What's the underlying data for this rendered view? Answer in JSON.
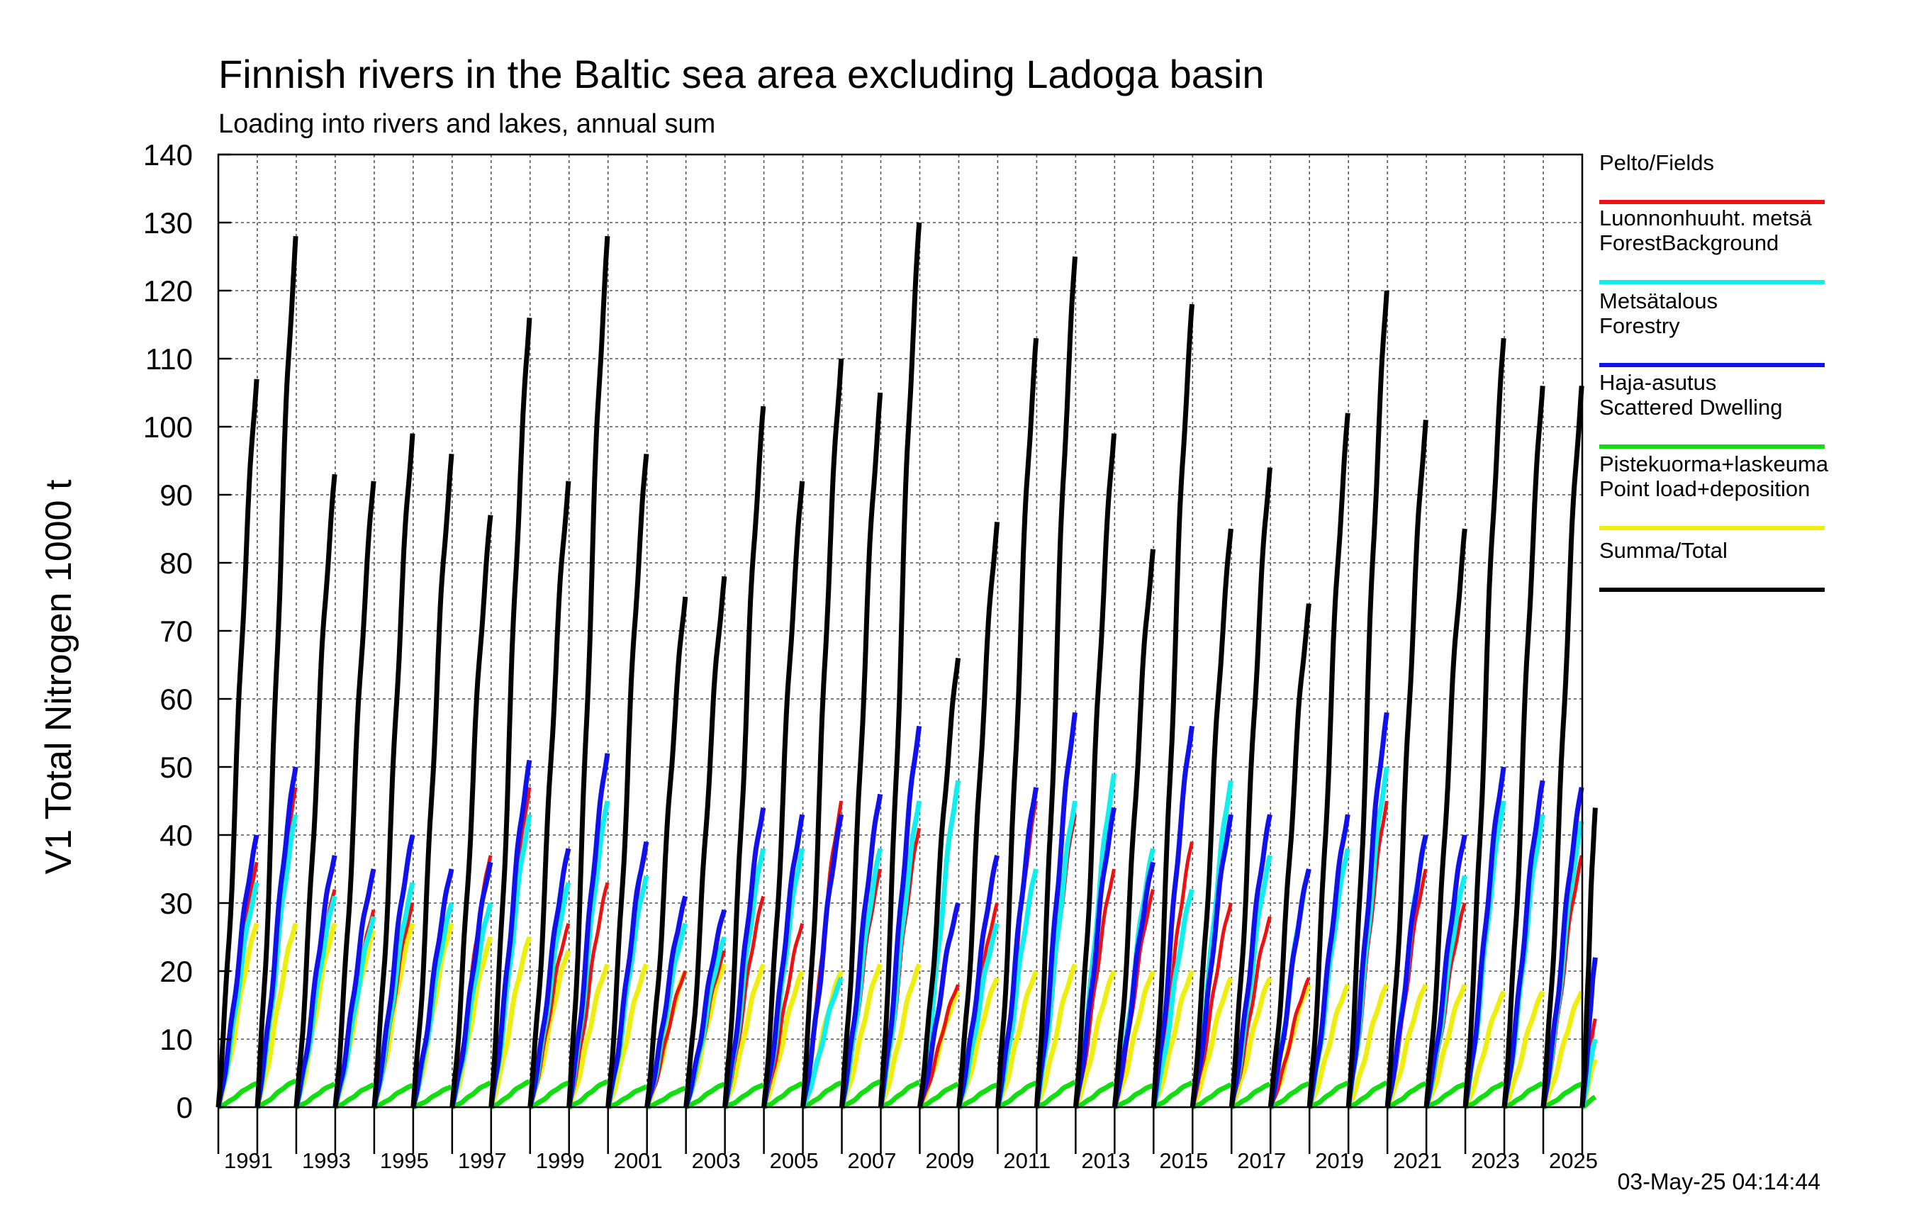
{
  "chart_data": {
    "type": "line",
    "title": "Finnish rivers in the Baltic sea area excluding Ladoga basin",
    "subtitle": "Loading into rivers and lakes, annual sum",
    "ylabel": "V1 Total Nitrogen 1000 t",
    "xlabel": "",
    "ylim": [
      0,
      140
    ],
    "xlim": [
      1990,
      2025
    ],
    "yticks": [
      "0",
      "10",
      "20",
      "30",
      "40",
      "50",
      "60",
      "70",
      "80",
      "90",
      "100",
      "110",
      "120",
      "130",
      "140"
    ],
    "xtick_labels": [
      "1991",
      "1993",
      "1995",
      "1997",
      "1999",
      "2001",
      "2003",
      "2005",
      "2007",
      "2009",
      "2011",
      "2013",
      "2015",
      "2017",
      "2019",
      "2021",
      "2023",
      "2025"
    ],
    "grid": true,
    "legend_position": "right",
    "timestamp": "03-May-25 04:14:44",
    "years": [
      1990,
      1991,
      1992,
      1993,
      1994,
      1995,
      1996,
      1997,
      1998,
      1999,
      2000,
      2001,
      2002,
      2003,
      2004,
      2005,
      2006,
      2007,
      2008,
      2009,
      2010,
      2011,
      2012,
      2013,
      2014,
      2015,
      2016,
      2017,
      2018,
      2019,
      2020,
      2021,
      2022,
      2023,
      2024,
      2025
    ],
    "series": [
      {
        "name": "Pelto/Fields",
        "color": "#ee1111",
        "annual_totals": [
          36,
          47,
          32,
          29,
          30,
          30,
          37,
          47,
          27,
          33,
          38,
          20,
          23,
          31,
          27,
          45,
          35,
          41,
          18,
          30,
          45,
          43,
          35,
          32,
          39,
          30,
          28,
          19,
          38,
          45,
          35,
          30,
          45,
          43,
          37,
          13
        ]
      },
      {
        "name": "Luonnonhuuht. metsä\nForestBackground",
        "color": "#11eeee",
        "annual_totals": [
          33,
          43,
          31,
          28,
          33,
          30,
          30,
          43,
          33,
          45,
          34,
          27,
          25,
          38,
          38,
          19,
          38,
          45,
          48,
          27,
          35,
          45,
          49,
          38,
          32,
          48,
          37,
          35,
          38,
          50,
          40,
          34,
          45,
          43,
          42,
          10
        ]
      },
      {
        "name": "Metsätalous\nForestry",
        "color": "#1111ee",
        "annual_totals": [
          40,
          50,
          37,
          35,
          40,
          35,
          36,
          51,
          38,
          52,
          39,
          31,
          29,
          44,
          43,
          43,
          46,
          56,
          30,
          37,
          47,
          58,
          44,
          36,
          56,
          43,
          43,
          35,
          43,
          58,
          40,
          40,
          50,
          48,
          47,
          22
        ]
      },
      {
        "name": "Haja-asutus\nScattered Dwelling",
        "color": "#11dd11",
        "annual_totals": [
          3.5,
          3.9,
          3.4,
          3.3,
          3.2,
          3.0,
          3.6,
          3.8,
          3.6,
          3.8,
          3.0,
          2.8,
          3.4,
          3.3,
          3.5,
          3.6,
          3.8,
          3.7,
          3.4,
          3.3,
          3.6,
          3.7,
          3.5,
          3.2,
          3.6,
          3.3,
          3.4,
          3.5,
          3.6,
          3.6,
          3.5,
          3.4,
          3.5,
          3.5,
          3.4,
          1.5
        ]
      },
      {
        "name": "Pistekuorma+laskeuma\nPoint load+deposition",
        "color": "#eeee11",
        "annual_totals": [
          27,
          27,
          27,
          26,
          27,
          27,
          25,
          25,
          23,
          21,
          21,
          20,
          21,
          21,
          20,
          20,
          21,
          21,
          17,
          19,
          20,
          21,
          20,
          20,
          20,
          19,
          19,
          18,
          18,
          18,
          18,
          18,
          17,
          17,
          17,
          7
        ]
      },
      {
        "name": "Summa/Total",
        "color": "#000000",
        "annual_totals": [
          107,
          128,
          93,
          92,
          99,
          96,
          87,
          116,
          92,
          128,
          96,
          75,
          78,
          103,
          92,
          110,
          105,
          130,
          66,
          86,
          113,
          125,
          99,
          82,
          118,
          85,
          94,
          74,
          102,
          120,
          101,
          85,
          113,
          106,
          106,
          44
        ]
      }
    ]
  }
}
